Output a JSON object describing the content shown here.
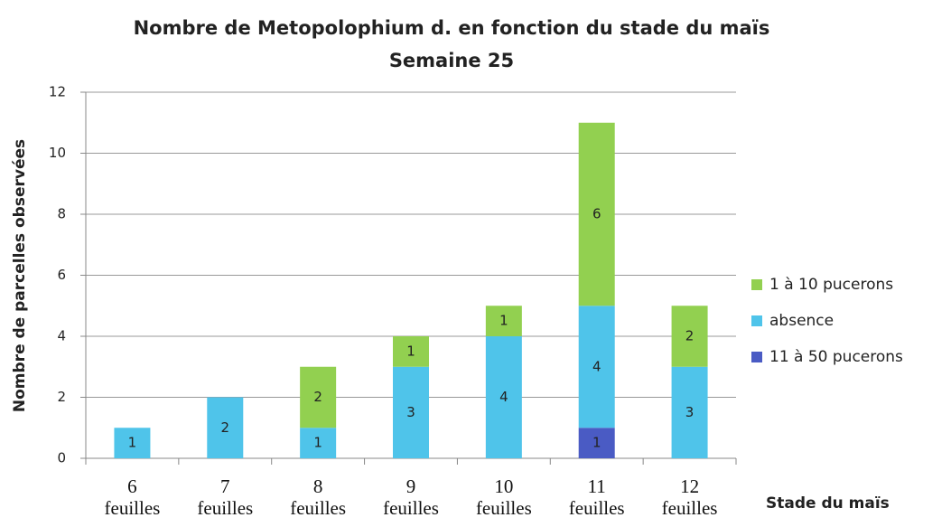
{
  "chart_data": {
    "type": "bar",
    "stacked": true,
    "title": "Nombre de Metopolophium d. en fonction du stade du maïs",
    "subtitle": "Semaine 25",
    "x_label": "Stade du maïs",
    "y_label": "Nombre de parcelles observées",
    "categories": [
      "6 feuilles",
      "7 feuilles",
      "8 feuilles",
      "9 feuilles",
      "10 feuilles",
      "11 feuilles",
      "12 feuilles"
    ],
    "series": [
      {
        "name": "11 à 50 pucerons",
        "color": "#4a5bc4",
        "values": [
          0,
          0,
          0,
          0,
          0,
          1,
          0
        ]
      },
      {
        "name": "absence",
        "color": "#4fc4ea",
        "values": [
          1,
          2,
          1,
          3,
          4,
          4,
          3
        ]
      },
      {
        "name": "1 à 10 pucerons",
        "color": "#92d050",
        "values": [
          0,
          0,
          2,
          1,
          1,
          6,
          2
        ]
      }
    ],
    "ylim": [
      0,
      12
    ],
    "yticks": [
      0,
      2,
      4,
      6,
      8,
      10,
      12
    ],
    "grid": true,
    "legend": "right"
  }
}
